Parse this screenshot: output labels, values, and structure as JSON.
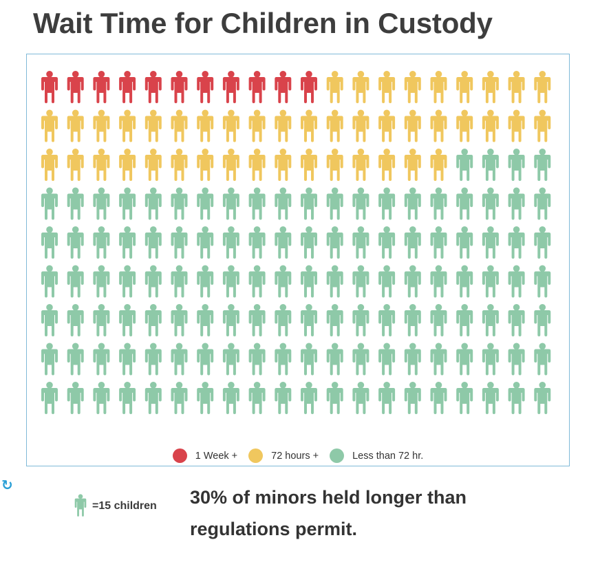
{
  "title": "Wait Time for Children in Custody",
  "chart_data": {
    "type": "waffle",
    "columns": 20,
    "rows": 9,
    "categories": [
      {
        "name": "1 Week +",
        "count": 11,
        "color": "#d9434b"
      },
      {
        "name": "72 hours +",
        "count": 45,
        "color": "#f0c75e"
      },
      {
        "name": "Less than 72 hr.",
        "count": 124,
        "color": "#8ec9a8"
      }
    ],
    "legend_placement": "bottom"
  },
  "unit_note": "=15 children",
  "unit_icon_color": "#8ec9a8",
  "caption": "30% of minors held longer than regulations permit.",
  "refresh_glyph": "↻"
}
